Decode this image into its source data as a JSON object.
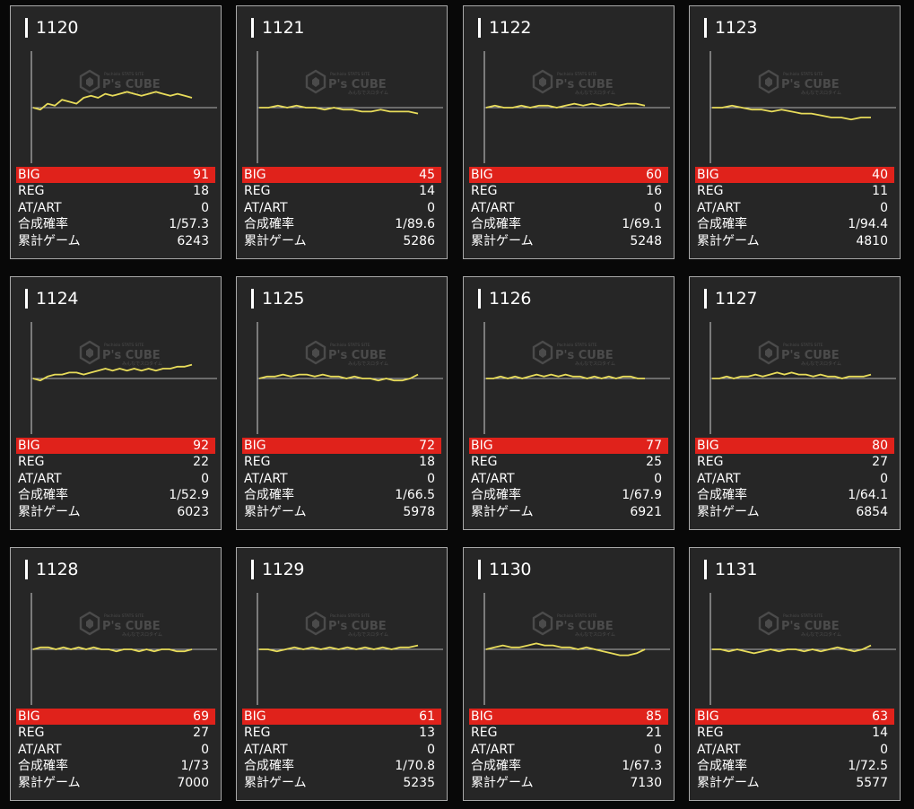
{
  "labels": {
    "big": "BIG",
    "reg": "REG",
    "atart": "AT/ART",
    "prob": "合成確率",
    "games": "累計ゲーム"
  },
  "watermark": {
    "brand": "P's CUBE",
    "small_top": "Pachislo STATS SITE",
    "small_bottom": "みんなでスロタイム"
  },
  "colors": {
    "big_bg": "#e0221b",
    "line": "#e8dc5a",
    "card_bg": "#262626",
    "border": "#a8a8a8"
  },
  "machines": [
    {
      "num": "1120",
      "big": "91",
      "reg": "18",
      "atart": "0",
      "prob": "1/57.3",
      "games": "6243",
      "graph": [
        0,
        -1,
        2,
        1,
        4,
        3,
        2,
        5,
        6,
        5,
        7,
        6,
        7,
        8,
        7,
        6,
        7,
        8,
        7,
        6,
        7,
        6,
        5
      ]
    },
    {
      "num": "1121",
      "big": "45",
      "reg": "14",
      "atart": "0",
      "prob": "1/89.6",
      "games": "5286",
      "graph": [
        0,
        0,
        1,
        0,
        1,
        0,
        0,
        -1,
        0,
        -1,
        -1,
        -2,
        -2,
        -1,
        -2,
        -2,
        -2,
        -3
      ]
    },
    {
      "num": "1122",
      "big": "60",
      "reg": "16",
      "atart": "0",
      "prob": "1/69.1",
      "games": "5248",
      "graph": [
        0,
        1,
        0,
        0,
        1,
        0,
        1,
        1,
        0,
        1,
        2,
        1,
        2,
        1,
        2,
        1,
        2,
        2,
        1
      ]
    },
    {
      "num": "1123",
      "big": "40",
      "reg": "11",
      "atart": "0",
      "prob": "1/94.4",
      "games": "4810",
      "graph": [
        0,
        0,
        1,
        0,
        -1,
        -1,
        -2,
        -1,
        -2,
        -3,
        -3,
        -4,
        -5,
        -5,
        -6,
        -5,
        -5
      ]
    },
    {
      "num": "1124",
      "big": "92",
      "reg": "22",
      "atart": "0",
      "prob": "1/52.9",
      "games": "6023",
      "graph": [
        0,
        -1,
        1,
        2,
        2,
        3,
        3,
        2,
        3,
        4,
        5,
        4,
        5,
        4,
        5,
        4,
        5,
        4,
        5,
        5,
        6,
        6,
        7
      ]
    },
    {
      "num": "1125",
      "big": "72",
      "reg": "18",
      "atart": "0",
      "prob": "1/66.5",
      "games": "5978",
      "graph": [
        0,
        1,
        1,
        2,
        1,
        2,
        2,
        1,
        2,
        1,
        1,
        0,
        1,
        0,
        0,
        -1,
        0,
        -1,
        -1,
        0,
        2
      ]
    },
    {
      "num": "1126",
      "big": "77",
      "reg": "25",
      "atart": "0",
      "prob": "1/67.9",
      "games": "6921",
      "graph": [
        0,
        0,
        1,
        0,
        1,
        0,
        1,
        2,
        1,
        2,
        1,
        2,
        1,
        1,
        0,
        1,
        0,
        1,
        0,
        1,
        1,
        0,
        0
      ]
    },
    {
      "num": "1127",
      "big": "80",
      "reg": "27",
      "atart": "0",
      "prob": "1/64.1",
      "games": "6854",
      "graph": [
        0,
        0,
        1,
        0,
        1,
        1,
        2,
        1,
        2,
        3,
        2,
        3,
        2,
        2,
        1,
        2,
        1,
        1,
        0,
        1,
        1,
        1,
        2
      ]
    },
    {
      "num": "1128",
      "big": "69",
      "reg": "27",
      "atart": "0",
      "prob": "1/73",
      "games": "7000",
      "graph": [
        0,
        1,
        1,
        0,
        1,
        0,
        1,
        0,
        1,
        0,
        0,
        -1,
        0,
        0,
        -1,
        0,
        -1,
        0,
        0,
        -1,
        -1,
        0
      ]
    },
    {
      "num": "1129",
      "big": "61",
      "reg": "13",
      "atart": "0",
      "prob": "1/70.8",
      "games": "5235",
      "graph": [
        0,
        0,
        -1,
        0,
        1,
        0,
        1,
        0,
        1,
        0,
        1,
        0,
        1,
        0,
        1,
        0,
        1,
        1,
        2
      ]
    },
    {
      "num": "1130",
      "big": "85",
      "reg": "21",
      "atart": "0",
      "prob": "1/67.3",
      "games": "7130",
      "graph": [
        0,
        1,
        2,
        1,
        1,
        2,
        3,
        2,
        2,
        1,
        1,
        0,
        1,
        0,
        -1,
        -2,
        -3,
        -3,
        -2,
        0
      ]
    },
    {
      "num": "1131",
      "big": "63",
      "reg": "14",
      "atart": "0",
      "prob": "1/72.5",
      "games": "5577",
      "graph": [
        0,
        0,
        -1,
        0,
        -1,
        -2,
        -1,
        0,
        -1,
        0,
        0,
        -1,
        0,
        -1,
        0,
        1,
        0,
        -1,
        0,
        2
      ]
    }
  ]
}
